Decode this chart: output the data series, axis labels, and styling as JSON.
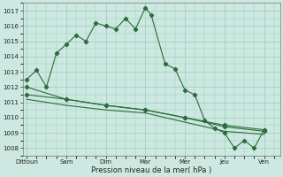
{
  "bg_color": "#cce8e0",
  "grid_color": "#99ccbb",
  "line_color": "#2d6b3c",
  "xlabel": "Pression niveau de la mer( hPa )",
  "x_labels": [
    "Dittoun",
    "Sam",
    "Dim",
    "Mar",
    "Mer",
    "Jeu",
    "Ven"
  ],
  "x_positions": [
    0,
    2,
    4,
    6,
    8,
    10,
    12
  ],
  "ylim": [
    1007.5,
    1017.5
  ],
  "yticks": [
    1008,
    1009,
    1010,
    1011,
    1012,
    1013,
    1014,
    1015,
    1016,
    1017
  ],
  "xlim": [
    -0.2,
    12.8
  ],
  "series1_x": [
    0,
    0.5,
    1,
    1.5,
    2,
    2.5,
    3,
    3.5,
    4,
    4.5,
    5,
    5.5,
    6,
    6.3,
    7,
    7.5,
    8,
    8.5,
    9,
    9.5,
    10,
    10.5,
    11,
    11.5,
    12
  ],
  "series1_y": [
    1012.5,
    1013.1,
    1012.0,
    1014.2,
    1014.8,
    1015.4,
    1015.0,
    1016.2,
    1016.0,
    1015.8,
    1016.5,
    1015.8,
    1017.2,
    1016.7,
    1013.5,
    1013.2,
    1011.8,
    1011.5,
    1009.8,
    1009.3,
    1009.0,
    1008.0,
    1008.5,
    1008.0,
    1009.2
  ],
  "series2_x": [
    0,
    2,
    4,
    6,
    8,
    10,
    12
  ],
  "series2_y": [
    1012.0,
    1011.2,
    1010.8,
    1010.5,
    1010.0,
    1009.5,
    1009.2
  ],
  "series3_x": [
    0,
    2,
    4,
    6,
    8,
    10,
    12
  ],
  "series3_y": [
    1011.5,
    1011.2,
    1010.8,
    1010.5,
    1010.0,
    1009.4,
    1009.1
  ],
  "series4_x": [
    0,
    2,
    4,
    6,
    8,
    10,
    12
  ],
  "series4_y": [
    1011.2,
    1010.8,
    1010.5,
    1010.3,
    1009.7,
    1009.1,
    1008.9
  ]
}
